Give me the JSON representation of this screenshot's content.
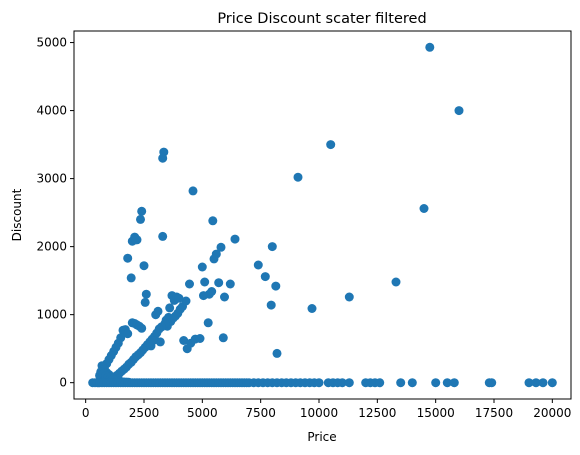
{
  "chart_data": {
    "type": "scatter",
    "title": "Price Discount scater filtered",
    "xlabel": "Price",
    "ylabel": "Discount",
    "xlim": [
      -500,
      20800
    ],
    "ylim": [
      -240,
      5170
    ],
    "xticks": [
      0,
      2500,
      5000,
      7500,
      10000,
      12500,
      15000,
      17500,
      20000
    ],
    "yticks": [
      0,
      1000,
      2000,
      3000,
      4000,
      5000
    ],
    "grid": false,
    "legend": "none",
    "point_color": "#1f77b4",
    "series": [
      {
        "x": [
          14750,
          16000,
          10500,
          14500,
          9100,
          13300,
          11300,
          9700,
          8000,
          8150,
          8200,
          3350,
          3300,
          3300,
          4600,
          2400,
          2350,
          2000,
          2100,
          2200,
          2150,
          2500,
          2600,
          1800,
          1950,
          2550,
          5450,
          6400,
          7400,
          5600,
          5800,
          5950,
          5300,
          5400,
          5000,
          5100,
          5250,
          6200,
          5700,
          5500,
          5050,
          7700,
          7950,
          5900,
          3500,
          3650,
          3750,
          3850,
          3950,
          4050,
          4150,
          4300,
          4450,
          3700,
          3800,
          3900,
          4000,
          3600,
          3550,
          3450,
          3400,
          3250,
          3150,
          3050,
          2950,
          2850,
          2750,
          2650,
          2550,
          2450,
          2350,
          2250,
          2150,
          2050,
          1950,
          1850,
          1750,
          1650,
          1550,
          1450,
          1350,
          1250,
          1150,
          1050,
          950,
          850,
          750,
          650,
          550,
          3000,
          3100,
          3200,
          2800,
          2900,
          4200,
          4350,
          4500,
          4700,
          4900,
          1600,
          1700,
          1800,
          1500,
          1400,
          1300,
          1200,
          1100,
          1000,
          900,
          800,
          700,
          600,
          2000,
          2100,
          2200,
          2300,
          2400,
          700,
          800,
          900,
          1000,
          1100,
          1200,
          1300,
          1400,
          600,
          650,
          750,
          850,
          950,
          1050,
          1150,
          1250,
          1350,
          1450,
          1550,
          1650,
          1750,
          1850,
          300,
          400,
          500,
          600,
          700,
          800,
          900,
          1000,
          1100,
          1200,
          1300,
          1400,
          1500,
          1600,
          1700,
          1800,
          1900,
          2000,
          2100,
          2200,
          2300,
          2400,
          2500,
          2600,
          2700,
          2800,
          2900,
          3000,
          3100,
          3200,
          3300,
          3400,
          3500,
          3600,
          3700,
          3800,
          3900,
          4000,
          4100,
          4200,
          4300,
          4400,
          4500,
          4600,
          4700,
          4800,
          4900,
          5000,
          5100,
          5200,
          5300,
          5400,
          5500,
          5600,
          5700,
          5800,
          5900,
          6000,
          6100,
          6200,
          6300,
          6400,
          6500,
          6600,
          6700,
          6800,
          6900,
          7000,
          7200,
          7400,
          7600,
          7800,
          8000,
          8200,
          8400,
          8600,
          8800,
          9000,
          9200,
          9400,
          9600,
          9800,
          10000,
          10400,
          10600,
          10800,
          11000,
          11300,
          12000,
          12200,
          12400,
          12600,
          13500,
          14000,
          15000,
          15500,
          15800,
          17300,
          17400,
          19000,
          19300,
          19600,
          20000
        ],
        "y": [
          4930,
          4000,
          3500,
          2560,
          3020,
          1480,
          1260,
          1090,
          2000,
          1420,
          430,
          3390,
          3300,
          2150,
          2820,
          2520,
          2400,
          2080,
          2140,
          2100,
          2100,
          1720,
          1300,
          1830,
          1540,
          1180,
          2380,
          2110,
          1730,
          1890,
          1990,
          1260,
          1300,
          1340,
          1700,
          1480,
          880,
          1450,
          1470,
          1820,
          1280,
          1560,
          1140,
          660,
          830,
          900,
          950,
          980,
          1020,
          1080,
          1120,
          1200,
          1450,
          1280,
          1210,
          1260,
          1240,
          1100,
          960,
          920,
          870,
          820,
          790,
          730,
          680,
          640,
          600,
          560,
          520,
          480,
          440,
          410,
          380,
          340,
          300,
          270,
          230,
          200,
          170,
          140,
          110,
          90,
          70,
          50,
          30,
          20,
          10,
          5,
          0,
          1000,
          1050,
          600,
          540,
          620,
          620,
          500,
          580,
          640,
          650,
          770,
          780,
          720,
          660,
          580,
          520,
          460,
          400,
          340,
          280,
          220,
          160,
          100,
          880,
          870,
          850,
          830,
          800,
          250,
          200,
          150,
          120,
          90,
          70,
          60,
          50,
          110,
          160,
          130,
          100,
          80,
          60,
          50,
          40,
          30,
          20,
          15,
          10,
          8,
          5,
          0,
          0,
          0,
          0,
          0,
          0,
          0,
          0,
          0,
          0,
          0,
          0,
          0,
          0,
          0,
          0,
          0,
          0,
          0,
          0,
          0,
          0,
          0,
          0,
          0,
          0,
          0,
          0,
          0,
          0,
          0,
          0,
          0,
          0,
          0,
          0,
          0,
          0,
          0,
          0,
          0,
          0,
          0,
          0,
          0,
          0,
          0,
          0,
          0,
          0,
          0,
          0,
          0,
          0,
          0,
          0,
          0,
          0,
          0,
          0,
          0,
          0,
          0,
          0,
          0,
          0,
          0,
          0,
          0,
          0,
          0,
          0,
          0,
          0,
          0,
          0,
          0,
          0,
          0,
          0,
          0,
          0,
          0,
          0,
          0,
          0,
          0,
          0,
          0,
          0,
          0,
          0,
          0,
          0,
          0,
          0,
          0,
          0,
          0,
          0,
          0,
          0,
          0
        ]
      }
    ]
  }
}
